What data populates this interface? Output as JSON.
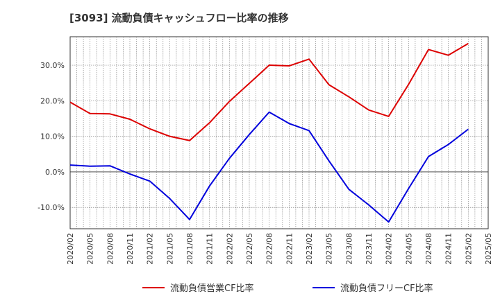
{
  "chart_data": {
    "type": "line",
    "title": "[3093]  流動負債キャッシュフロー比率の推移",
    "xlabel": "",
    "ylabel": "",
    "categories": [
      "2020/02",
      "2020/05",
      "2020/08",
      "2020/11",
      "2021/02",
      "2021/05",
      "2021/08",
      "2021/11",
      "2022/02",
      "2022/05",
      "2022/08",
      "2022/11",
      "2023/02",
      "2023/05",
      "2023/08",
      "2023/11",
      "2024/02",
      "2024/05",
      "2024/08",
      "2024/11",
      "2025/02",
      "2025/05"
    ],
    "yticks": [
      -10,
      0,
      10,
      20,
      30
    ],
    "ytick_labels": [
      "-10.0%",
      "0.0%",
      "10.0%",
      "20.0%",
      "30.0%"
    ],
    "ylim": [
      -16,
      38
    ],
    "grid": true,
    "legend_position": "bottom",
    "series": [
      {
        "name": "流動負債営業CF比率",
        "color": "#dd0000",
        "values": [
          19.6,
          16.4,
          16.3,
          14.8,
          12.1,
          10.0,
          8.8,
          13.8,
          19.8,
          24.9,
          30.0,
          29.8,
          31.7,
          24.5,
          21.1,
          17.4,
          15.6,
          24.6,
          34.4,
          32.8,
          36.1,
          null
        ]
      },
      {
        "name": "流動負債フリーCF比率",
        "color": "#0000dd",
        "values": [
          1.9,
          1.6,
          1.7,
          -0.6,
          -2.6,
          -7.5,
          -13.4,
          -4.0,
          3.8,
          10.5,
          16.8,
          13.6,
          11.6,
          3.1,
          -4.9,
          -9.3,
          -14.1,
          -4.7,
          4.3,
          7.7,
          12.0,
          null
        ]
      }
    ]
  }
}
